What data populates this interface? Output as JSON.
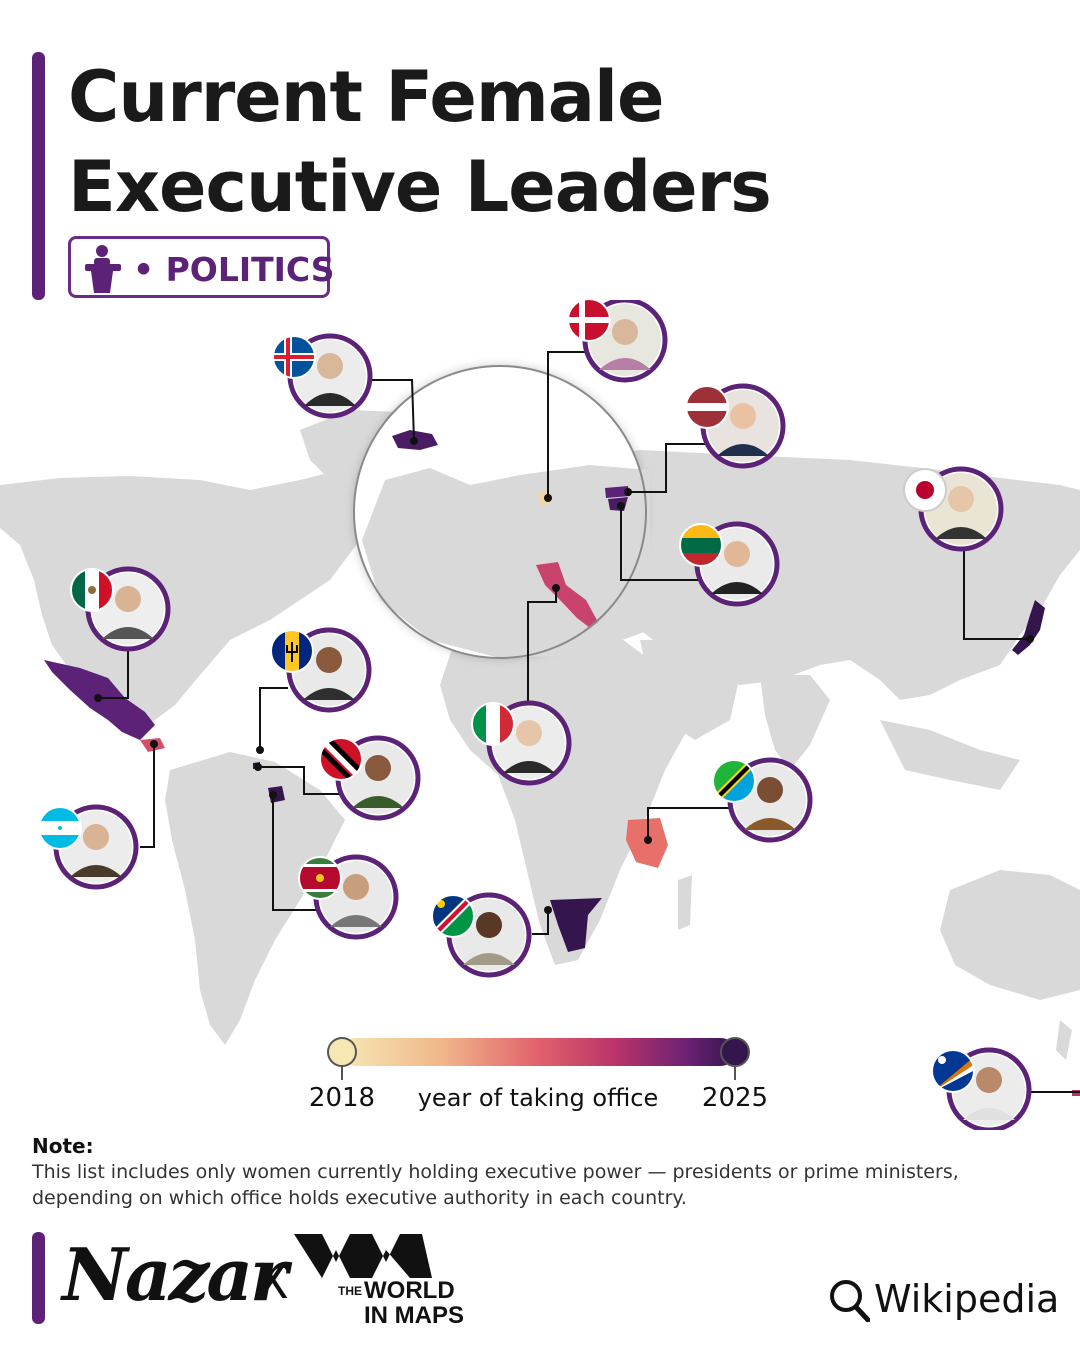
{
  "header": {
    "title_line1": "Current Female",
    "title_line2": "Executive Leaders",
    "category": "• POLITICS",
    "category_icon": "podium-speaker-icon"
  },
  "legend": {
    "min_label": "2018",
    "mid_label": "year of taking office",
    "max_label": "2025",
    "min_year": 2018,
    "max_year": 2025,
    "colors": [
      "#f6e7b3",
      "#f0b88c",
      "#e2616b",
      "#b8336a",
      "#6b2174",
      "#35154e"
    ]
  },
  "map_colors": {
    "land": "#d9d9d9",
    "ocean": "#ffffff",
    "leader_line": "#111111",
    "portrait_ring": "#5b2278"
  },
  "leaders": [
    {
      "country": "Iceland",
      "flag": "iceland-flag-icon",
      "year_color": "#4a1c63"
    },
    {
      "country": "Denmark",
      "flag": "denmark-flag-icon",
      "year_color": "#f3d6a4"
    },
    {
      "country": "Latvia",
      "flag": "latvia-flag-icon",
      "year_color": "#5b2278"
    },
    {
      "country": "Lithuania",
      "flag": "lithuania-flag-icon",
      "year_color": "#4a1c63"
    },
    {
      "country": "Japan",
      "flag": "japan-flag-icon",
      "year_color": "#35154e"
    },
    {
      "country": "Mexico",
      "flag": "mexico-flag-icon",
      "year_color": "#5b2278"
    },
    {
      "country": "Barbados",
      "flag": "barbados-flag-icon",
      "year_color": "#f6e7b3"
    },
    {
      "country": "Trinidad and Tobago",
      "flag": "trinidad-and-tobago-flag-icon",
      "year_color": "#35154e"
    },
    {
      "country": "Honduras",
      "flag": "honduras-flag-icon",
      "year_color": "#d4506a"
    },
    {
      "country": "Suriname",
      "flag": "suriname-flag-icon",
      "year_color": "#35154e"
    },
    {
      "country": "Italy",
      "flag": "italy-flag-icon",
      "year_color": "#c8446c"
    },
    {
      "country": "Tanzania",
      "flag": "tanzania-flag-icon",
      "year_color": "#e8706a"
    },
    {
      "country": "Namibia",
      "flag": "namibia-flag-icon",
      "year_color": "#35154e"
    },
    {
      "country": "Marshall Islands",
      "flag": "marshall-islands-flag-icon",
      "year_color": "#b8336a"
    }
  ],
  "note": {
    "heading": "Note:",
    "text": "This list includes only women currently holding executive power — presidents or prime ministers, depending on which office holds executive authority in each country."
  },
  "footer": {
    "brand": "Nazar",
    "separator": "X",
    "partner_the": "THE",
    "partner_world": "WORLD",
    "partner_maps": "IN MAPS",
    "source": "Wikipedia",
    "source_icon": "search-icon"
  }
}
